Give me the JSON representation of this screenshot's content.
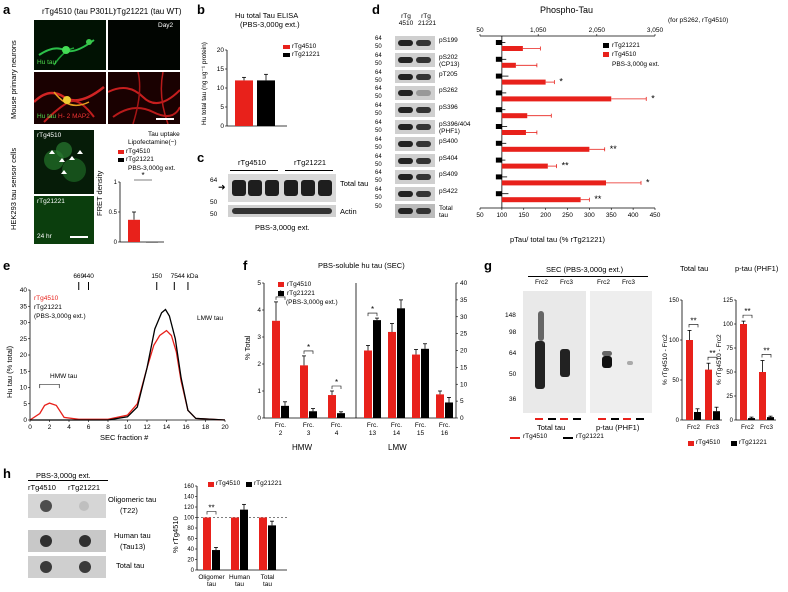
{
  "panels": {
    "a": "a",
    "b": "b",
    "c": "c",
    "d": "d",
    "e": "e",
    "f": "f",
    "g": "g",
    "h": "h"
  },
  "colors": {
    "rTg4510": "#e8211b",
    "rTg21221": "#000000"
  },
  "a": {
    "col1": "rTg4510 (tau P301L)",
    "col2": "rTg21221 (tau WT)",
    "row_label_top": "Mouse primary neurons",
    "row_label_bottom": "HEK293 tau sensor cells",
    "day": "Day2",
    "hu_tau": "Hu tau",
    "hu_tau2": "Hu tau",
    "map2": "H- 2 MAP2",
    "cell1": "rTg4510",
    "cell2": "rTg21221",
    "time": "24 hr",
    "chart_title": "Tau uptake",
    "chart_sub": "Lipofectamine(−)",
    "legend1": "rTg4510",
    "legend2": "rTg21221",
    "extract": "PBS-3,000g ext.",
    "ylabel": "FRET density",
    "sig": "*"
  },
  "b": {
    "title": "Hu total Tau ELISA",
    "subtitle": "(PBS-3,000g ext.)",
    "ylabel": "Hu total tau (ng ug⁻¹ protein)",
    "legend1": "rTg4510",
    "legend2": "rTg21221"
  },
  "c": {
    "col1": "rTg4510",
    "col2": "rTg21221",
    "row1": "Total tau",
    "row2": "Actin",
    "footer": "PBS-3,000g ext.",
    "kda": [
      "64",
      "50",
      "50"
    ]
  },
  "d": {
    "title": "Phospho-Tau",
    "top_note": "(for pS262, rTg4510)",
    "lane1": "rTg 4510",
    "lane2": "rTg 21221",
    "xlabel": "pTau/ total tau (% rTg21221)",
    "legend1": "rTg21221",
    "legend2": "rTg4510",
    "extract": "PBS-3,000g ext.",
    "markers": [
      "64",
      "50",
      "64",
      "50",
      "64",
      "50",
      "64",
      "50",
      "64",
      "50",
      "64",
      "50",
      "64",
      "50",
      "64",
      "50",
      "64",
      "50",
      "64",
      "50",
      "50"
    ]
  },
  "e": {
    "kda": "669  440",
    "kda2": "150  75  44 kDa",
    "legend1": "rTg4510",
    "legend2": "rTg21221",
    "extract": "(PBS-3,000g ext.)",
    "hmw": "HMW tau",
    "lmw": "LMW tau",
    "xlabel": "SEC fraction #",
    "ylabel": "Hu tau (% total)"
  },
  "f": {
    "title": "PBS-soluble hu tau (SEC)",
    "legend1": "rTg4510",
    "legend2": "rTg21221",
    "extract": "(PBS-3,000g ext.)",
    "ylabel": "% Total",
    "group1": "HMW",
    "group2": "LMW"
  },
  "g": {
    "blot_title": "SEC (PBS-3,000g ext.)",
    "lanes": [
      "Frc2",
      "Frc3",
      "Frc2",
      "Frc3"
    ],
    "blot_label1": "Total tau",
    "blot_label2": "p-tau (PHF1)",
    "markers": [
      "148",
      "98",
      "64",
      "50",
      "36"
    ],
    "legend1": "rTg4510",
    "legend2": "rTg21221",
    "chart1_title": "Total tau",
    "chart2_title": "p-tau (PHF1)",
    "chart1_ylabel": "% rTg4510 - Frc2",
    "chart2_ylabel": "% rTg4510 - Frc2"
  },
  "h": {
    "title": "PBS-3,000g ext.",
    "col1": "rTg4510",
    "col2": "rTg21221",
    "rows": [
      "Oligomeric tau",
      "(T22)",
      "Human tau",
      "(Tau13)",
      "Total tau"
    ],
    "legend1": "rTg4510",
    "legend2": "rTg21221",
    "ylabel": "% rTg4510"
  },
  "chart_data": [
    {
      "id": "a_chart",
      "type": "bar",
      "categories": [
        "rTg4510",
        "rTg21221"
      ],
      "values": [
        0.37,
        0.0
      ],
      "errors": [
        0.13,
        0
      ],
      "ylim": [
        0,
        1
      ],
      "yticks": [
        0,
        0.5,
        1
      ],
      "ylabel": "FRET density",
      "significance": "*"
    },
    {
      "id": "b_chart",
      "type": "bar",
      "title": "Hu total Tau ELISA",
      "categories": [
        "rTg4510",
        "rTg21221"
      ],
      "values": [
        12,
        12
      ],
      "errors": [
        0.8,
        1.6
      ],
      "ylim": [
        0,
        20
      ],
      "yticks": [
        0,
        5,
        10,
        15,
        20
      ]
    },
    {
      "id": "d_chart",
      "type": "bar",
      "orientation": "horizontal",
      "title": "Phospho-Tau",
      "categories": [
        "pS199",
        "pS202 (CP13)",
        "pT205",
        "pS262",
        "pS396",
        "pS396/404 (PHF1)",
        "pS400",
        "pS404",
        "pS409",
        "pS422"
      ],
      "category_lines": [
        [
          "pS199"
        ],
        [
          "pS202",
          "(CP13)"
        ],
        [
          "pT205"
        ],
        [
          "pS262"
        ],
        [
          "pS396"
        ],
        [
          "pS396/404",
          "(PHF1)"
        ],
        [
          "pS400"
        ],
        [
          "pS404"
        ],
        [
          "pS409"
        ],
        [
          "pS422"
        ]
      ],
      "series": [
        {
          "name": "rTg21221",
          "values": [
            100,
            100,
            100,
            100,
            100,
            100,
            100,
            100,
            100,
            100
          ],
          "errors": [
            8,
            10,
            15,
            10,
            8,
            12,
            10,
            8,
            12,
            15
          ]
        },
        {
          "name": "rTg4510",
          "values": [
            148,
            132,
            200,
            350,
            158,
            155,
            300,
            205,
            338,
            280
          ],
          "errors": [
            40,
            48,
            20,
            80,
            55,
            25,
            35,
            20,
            80,
            20
          ]
        }
      ],
      "significance": [
        "",
        "",
        "*",
        "*",
        "",
        "",
        "**",
        "**",
        "*",
        "**"
      ],
      "xlim": [
        50,
        450
      ],
      "xticks": [
        50,
        100,
        150,
        200,
        250,
        300,
        350,
        400,
        450
      ],
      "top_ticks": [
        "50",
        "1,050",
        "2,050",
        "3,050"
      ]
    },
    {
      "id": "e_chart",
      "type": "line",
      "xlabel": "SEC fraction #",
      "ylabel": "Hu tau (% total)",
      "xlim": [
        0,
        20
      ],
      "ylim": [
        0,
        40
      ],
      "xticks": [
        0,
        2,
        4,
        6,
        8,
        10,
        12,
        14,
        16,
        18,
        20
      ],
      "yticks": [
        0,
        5,
        10,
        15,
        20,
        25,
        30,
        35,
        40
      ],
      "markers": [
        {
          "label": "669",
          "x": 5
        },
        {
          "label": "440",
          "x": 6
        },
        {
          "label": "150",
          "x": 13
        },
        {
          "label": "75",
          "x": 14.8
        },
        {
          "label": "44 kDa",
          "x": 16.2
        }
      ],
      "series": [
        {
          "name": "rTg4510",
          "points": [
            [
              0,
              0
            ],
            [
              1,
              2
            ],
            [
              1.5,
              4.5
            ],
            [
              2,
              5.2
            ],
            [
              2.7,
              4.5
            ],
            [
              3.5,
              0.8
            ],
            [
              5,
              0.2
            ],
            [
              8,
              0.2
            ],
            [
              10,
              1.5
            ],
            [
              11,
              5
            ],
            [
              12,
              16
            ],
            [
              12.7,
              23
            ],
            [
              13.3,
              26
            ],
            [
              14,
              27.5
            ],
            [
              14.5,
              26
            ],
            [
              15,
              21
            ],
            [
              15.5,
              12
            ],
            [
              16.2,
              3
            ],
            [
              17,
              0.5
            ],
            [
              20,
              0
            ]
          ]
        },
        {
          "name": "rTg21221",
          "points": [
            [
              0,
              0
            ],
            [
              2,
              0
            ],
            [
              8,
              0
            ],
            [
              10,
              1
            ],
            [
              11,
              4
            ],
            [
              12,
              16
            ],
            [
              12.8,
              28
            ],
            [
              13.5,
              33
            ],
            [
              13.9,
              34
            ],
            [
              14.3,
              32
            ],
            [
              14.9,
              25
            ],
            [
              15.5,
              13
            ],
            [
              16.2,
              3
            ],
            [
              17,
              0.5
            ],
            [
              20,
              0
            ]
          ]
        }
      ]
    },
    {
      "id": "f_chart",
      "type": "bar",
      "title": "PBS-soluble hu tau (SEC)",
      "categories": [
        "Frc. 2",
        "Frc. 3",
        "Frc. 4",
        "Frc. 13",
        "Frc. 14",
        "Frc. 15",
        "Frc. 16"
      ],
      "category_lines": [
        [
          "Frc.",
          "2"
        ],
        [
          "Frc.",
          "3"
        ],
        [
          "Frc.",
          "4"
        ],
        [
          "Frc.",
          "13"
        ],
        [
          "Frc.",
          "14"
        ],
        [
          "Frc.",
          "15"
        ],
        [
          "Frc.",
          "16"
        ]
      ],
      "yleft_ylim": [
        0,
        5
      ],
      "yleft_ticks": [
        0,
        1,
        2,
        3,
        4,
        5
      ],
      "yright_ylim": [
        0,
        40
      ],
      "yright_ticks": [
        0,
        5,
        10,
        15,
        20,
        25,
        30,
        35,
        40
      ],
      "series": [
        {
          "name": "rTg4510",
          "values": [
            3.6,
            1.95,
            0.85,
            20,
            25.5,
            18.8,
            7
          ],
          "errors": [
            0.7,
            0.35,
            0.15,
            1.5,
            2.5,
            1.5,
            1
          ],
          "axis": [
            "left",
            "left",
            "left",
            "right",
            "right",
            "right",
            "right"
          ]
        },
        {
          "name": "rTg21221",
          "values": [
            0.45,
            0.25,
            0.18,
            29,
            32.5,
            20.5,
            4.6
          ],
          "errors": [
            0.15,
            0.1,
            0.05,
            0.6,
            2.5,
            1.5,
            1.5
          ],
          "axis": [
            "left",
            "left",
            "left",
            "right",
            "right",
            "right",
            "right"
          ]
        }
      ],
      "significance": [
        "*",
        "*",
        "*",
        "*",
        "",
        "",
        ""
      ]
    },
    {
      "id": "g_chart1",
      "type": "bar",
      "title": "Total tau",
      "categories": [
        "Frc2",
        "Frc3"
      ],
      "ylim": [
        0,
        150
      ],
      "yticks": [
        0,
        50,
        100,
        150
      ],
      "series": [
        {
          "name": "rTg4510",
          "values": [
            100,
            63
          ],
          "errors": [
            12,
            8
          ]
        },
        {
          "name": "rTg21221",
          "values": [
            10,
            11
          ],
          "errors": [
            4,
            5
          ]
        }
      ],
      "significance": [
        "**",
        "**"
      ]
    },
    {
      "id": "g_chart2",
      "type": "bar",
      "title": "p-tau (PHF1)",
      "categories": [
        "Frc2",
        "Frc3"
      ],
      "ylim": [
        0,
        125
      ],
      "yticks": [
        0,
        25,
        50,
        75,
        100,
        125
      ],
      "series": [
        {
          "name": "rTg4510",
          "values": [
            100,
            50
          ],
          "errors": [
            3,
            12
          ]
        },
        {
          "name": "rTg21221",
          "values": [
            2,
            3
          ],
          "errors": [
            1,
            1
          ]
        }
      ],
      "significance": [
        "**",
        "**"
      ]
    },
    {
      "id": "h_chart",
      "type": "bar",
      "categories": [
        "Oligomer tau",
        "Human tau",
        "Total tau"
      ],
      "category_lines": [
        [
          "Oligomer",
          "tau"
        ],
        [
          "Human",
          "tau"
        ],
        [
          "Total",
          "tau"
        ]
      ],
      "ylim": [
        0,
        160
      ],
      "yticks": [
        0,
        20,
        40,
        60,
        80,
        100,
        120,
        140,
        160
      ],
      "reference_line": 100,
      "series": [
        {
          "name": "rTg4510",
          "values": [
            100,
            100,
            100
          ],
          "errors": [
            0,
            0,
            0
          ]
        },
        {
          "name": "rTg21221",
          "values": [
            38,
            115,
            85
          ],
          "errors": [
            5,
            10,
            8
          ]
        }
      ],
      "significance": [
        "**",
        "",
        ""
      ]
    }
  ]
}
